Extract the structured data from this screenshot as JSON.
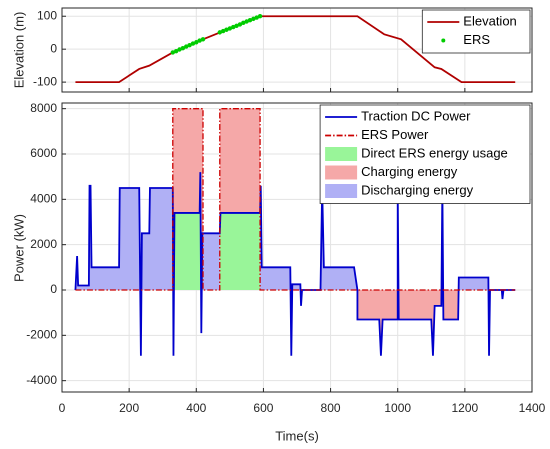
{
  "chart_data": [
    {
      "type": "line",
      "ylabel": "Elevation (m)",
      "xlim": [
        0,
        1400
      ],
      "xticks": [
        0,
        200,
        400,
        600,
        800,
        1000,
        1200,
        1400
      ],
      "ylim": [
        -130,
        125
      ],
      "yticks": [
        -100,
        0,
        100
      ],
      "grid": true,
      "legend": "upper right",
      "series": [
        {
          "name": "Elevation",
          "color": "#b00000",
          "style": "line",
          "x": [
            40,
            170,
            200,
            230,
            260,
            330,
            420,
            590,
            880,
            960,
            1010,
            1110,
            1130,
            1190,
            1350
          ],
          "values": [
            -100,
            -100,
            -80,
            -60,
            -50,
            -10,
            30,
            100,
            100,
            45,
            30,
            -55,
            -60,
            -100,
            -100
          ]
        },
        {
          "name": "ERS",
          "color": "#00cc00",
          "style": "points",
          "x": [
            330,
            340,
            350,
            360,
            370,
            380,
            390,
            400,
            410,
            420,
            470,
            480,
            490,
            500,
            510,
            520,
            530,
            540,
            550,
            560,
            570,
            580,
            590
          ],
          "values": [
            -10,
            -6,
            -1,
            3,
            8,
            12,
            17,
            21,
            26,
            30,
            51,
            55,
            59,
            63,
            67,
            71,
            75,
            80,
            84,
            88,
            92,
            96,
            100
          ]
        }
      ]
    },
    {
      "type": "line",
      "xlabel": "Time(s)",
      "ylabel": "Power (kW)",
      "xlim": [
        0,
        1400
      ],
      "xticks": [
        0,
        200,
        400,
        600,
        800,
        1000,
        1200,
        1400
      ],
      "ylim": [
        -4500,
        8250
      ],
      "yticks": [
        -4000,
        -2000,
        0,
        2000,
        4000,
        6000,
        8000
      ],
      "grid": true,
      "legend": "upper right",
      "series": [
        {
          "name": "Traction DC Power",
          "color": "#0000cc",
          "style": "line",
          "x": [
            40,
            45,
            48,
            80,
            82,
            85,
            88,
            170,
            172,
            230,
            235,
            238,
            260,
            262,
            330,
            332,
            335,
            410,
            412,
            415,
            418,
            470,
            472,
            590,
            592,
            595,
            680,
            683,
            686,
            710,
            712,
            715,
            770,
            775,
            780,
            870,
            880,
            880,
            945,
            950,
            955,
            1000,
            1000,
            1003,
            1100,
            1105,
            1110,
            1130,
            1133,
            1136,
            1180,
            1182,
            1270,
            1272,
            1275,
            1310,
            1312,
            1315,
            1350
          ],
          "values": [
            0,
            1500,
            200,
            200,
            4600,
            4600,
            1000,
            1000,
            4500,
            4500,
            -2900,
            2500,
            2500,
            4500,
            4500,
            -2900,
            3400,
            3400,
            5200,
            -1900,
            2500,
            2500,
            3400,
            3400,
            4600,
            1000,
            1000,
            -2900,
            250,
            250,
            -700,
            0,
            0,
            4500,
            1000,
            1000,
            0,
            -1300,
            -1300,
            -2900,
            -1300,
            -1300,
            4400,
            -1300,
            -1300,
            -2900,
            -700,
            -700,
            4600,
            -1300,
            -1300,
            550,
            550,
            -2900,
            0,
            0,
            -400,
            0,
            0
          ]
        },
        {
          "name": "ERS Power",
          "color": "#cc0000",
          "style": "dash",
          "x": [
            40,
            330,
            330,
            420,
            420,
            470,
            470,
            590,
            590,
            1350
          ],
          "values": [
            0,
            0,
            8000,
            8000,
            0,
            0,
            8000,
            8000,
            0,
            0
          ]
        }
      ],
      "fills": [
        {
          "name": "Direct ERS energy usage",
          "color": "#99f599"
        },
        {
          "name": "Charging energy",
          "color": "#f5a8a8"
        },
        {
          "name": "Discharging energy",
          "color": "#b0b0f5"
        }
      ]
    }
  ]
}
